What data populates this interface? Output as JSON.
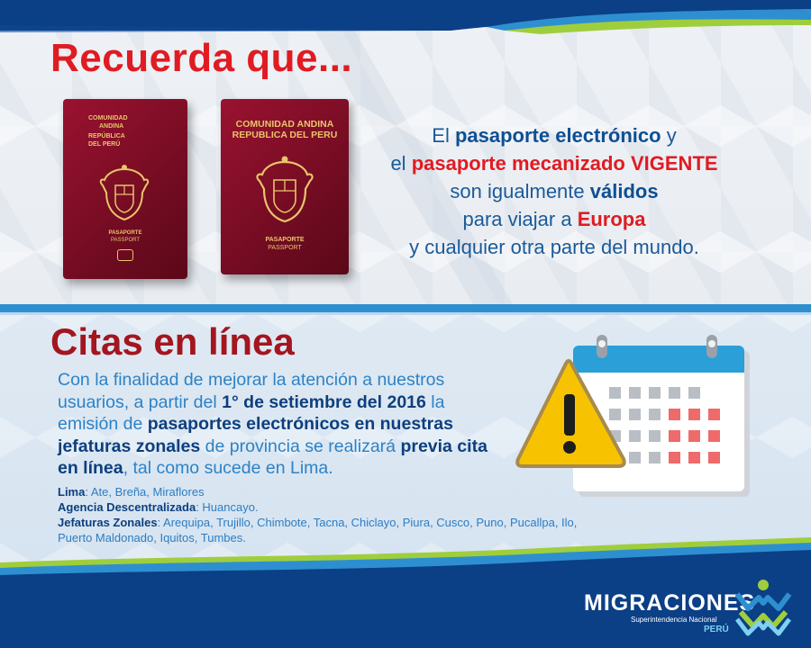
{
  "section1": {
    "title": "Recuerda que...",
    "passport_small": {
      "line1": "COMUNIDAD",
      "line2": "ANDINA",
      "line3": "REPÚBLICA",
      "line4": "DEL PERÚ",
      "label1": "PASAPORTE",
      "label2": "PASSPORT"
    },
    "passport_large": {
      "line1": "COMUNIDAD ANDINA",
      "line2": "REPUBLICA DEL PERU",
      "label1": "PASAPORTE",
      "label2": "PASSPORT"
    },
    "message": {
      "t1": "El ",
      "b1": "pasaporte electrónico",
      "t2": " y",
      "t3": "el ",
      "r1": "pasaporte mecanizado VIGENTE",
      "t4": "son igualmente ",
      "b2": "válidos",
      "t5": "para viajar a ",
      "r2": "Europa",
      "t6": "y cualquier otra parte del mundo."
    }
  },
  "section2": {
    "title": "Citas en línea",
    "body": {
      "t1": "Con la finalidad de mejorar la atención a nuestros usuarios, a partir del ",
      "b1": "1° de setiembre del 2016",
      "t2": " la emisión de ",
      "b2": "pasaportes electrónicos en nuestras jefaturas zonales",
      "t3": " de provincia se realizará ",
      "b3": "previa cita en línea",
      "t4": ", tal como sucede en Lima."
    },
    "offices": {
      "lima_label": "Lima",
      "lima_value": ": Ate, Breña, Miraflores",
      "agencia_label": "Agencia Descentralizada",
      "agencia_value": ": Huancayo.",
      "jefaturas_label": "Jefaturas Zonales",
      "jefaturas_value": ": Arequipa, Trujillo, Chimbote, Tacna, Chiclayo, Piura, Cusco, Puno, Pucallpa, Ilo, Puerto Maldonado, Iquitos, Tumbes."
    }
  },
  "logo": {
    "name": "MIGRACIONES",
    "subtitle": "Superintendencia Nacional",
    "country": "PERÚ"
  },
  "icons": {
    "calendar": "calendar-icon",
    "warning": "warning-icon",
    "coat_of_arms": "coat-of-arms-icon",
    "chip": "chip-icon",
    "logo_mark": "migraciones-logo-icon"
  },
  "colors": {
    "title_red": "#e01b22",
    "title_dark_red": "#a3161f",
    "text_blue": "#2d82c6",
    "bold_blue": "#0d4f94",
    "band_blue": "#0b3f86",
    "divider_blue": "#2e8fd0",
    "warning_yellow": "#f7c300",
    "calendar_red": "#ef6a6a",
    "passport_maroon": "#8a0f2a"
  }
}
